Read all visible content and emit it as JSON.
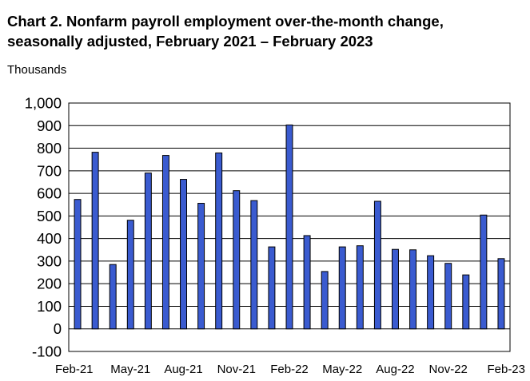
{
  "chart_data": {
    "type": "bar",
    "title": "Chart 2. Nonfarm payroll employment over-the-month change,\nseasonally adjusted, February 2021 – February 2023",
    "ylabel": "Thousands",
    "xlabel": "",
    "ylim": [
      -100,
      1000
    ],
    "yticks": [
      -100,
      0,
      100,
      200,
      300,
      400,
      500,
      600,
      700,
      800,
      900,
      1000
    ],
    "ytick_labels": [
      "-100",
      "0",
      "100",
      "200",
      "300",
      "400",
      "500",
      "600",
      "700",
      "800",
      "900",
      "1,000"
    ],
    "grid": true,
    "bar_color": "#3a5bd0",
    "categories": [
      "Feb-21",
      "Mar-21",
      "Apr-21",
      "May-21",
      "Jun-21",
      "Jul-21",
      "Aug-21",
      "Sep-21",
      "Oct-21",
      "Nov-21",
      "Dec-21",
      "Jan-22",
      "Feb-22",
      "Mar-22",
      "Apr-22",
      "May-22",
      "Jun-22",
      "Jul-22",
      "Aug-22",
      "Sep-22",
      "Oct-22",
      "Nov-22",
      "Dec-22",
      "Jan-23",
      "Feb-23"
    ],
    "xtick_labels": [
      "Feb-21",
      "May-21",
      "Aug-21",
      "Nov-21",
      "Feb-22",
      "May-22",
      "Aug-22",
      "Nov-22",
      "Feb-23"
    ],
    "values": [
      573,
      782,
      285,
      481,
      690,
      768,
      662,
      556,
      779,
      612,
      568,
      363,
      903,
      413,
      254,
      363,
      368,
      565,
      352,
      350,
      324,
      290,
      239,
      504,
      311
    ]
  }
}
